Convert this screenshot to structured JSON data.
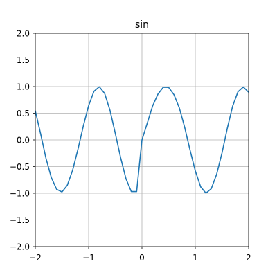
{
  "chart_data": {
    "type": "line",
    "title": "sin",
    "xlabel": "",
    "ylabel": "",
    "xlim": [
      -2,
      2
    ],
    "ylim": [
      -2,
      2
    ],
    "xticks": [
      -2,
      -1,
      0,
      1,
      2
    ],
    "xtick_labels": [
      "−2",
      "−1",
      "0",
      "1",
      "2"
    ],
    "yticks": [
      2.0,
      1.5,
      1.0,
      0.5,
      0.0,
      -0.5,
      -1.0,
      -1.5,
      -2.0
    ],
    "ytick_labels": [
      "2.0",
      "1.5",
      "1.0",
      "0.5",
      "0.0",
      "−0.5",
      "−1.0",
      "−1.5",
      "−2.0"
    ],
    "grid": true,
    "series": [
      {
        "color": "#1f77b4",
        "x": [
          -2.0,
          -1.9,
          -1.8,
          -1.7,
          -1.6,
          -1.5,
          -1.4,
          -1.3,
          -1.2,
          -1.1,
          -1.0,
          -0.9,
          -0.8,
          -0.7,
          -0.6,
          -0.5,
          -0.4,
          -0.3,
          -0.2,
          -0.1,
          0.0,
          0.1,
          0.2,
          0.3,
          0.4,
          0.5,
          0.6,
          0.7,
          0.8,
          0.9,
          1.0,
          1.1,
          1.2,
          1.3,
          1.4,
          1.5,
          1.6,
          1.7,
          1.8,
          1.9,
          2.0
        ],
        "y": [
          0.544,
          0.113,
          -0.343,
          -0.705,
          -0.926,
          -0.976,
          -0.851,
          -0.568,
          -0.174,
          0.258,
          0.643,
          0.911,
          0.996,
          0.872,
          0.556,
          0.123,
          -0.334,
          -0.728,
          -0.968,
          -0.969,
          0.0,
          0.315,
          0.637,
          0.859,
          0.988,
          0.985,
          0.848,
          0.602,
          0.239,
          -0.185,
          -0.58,
          -0.879,
          -0.999,
          -0.914,
          -0.645,
          -0.247,
          0.215,
          0.632,
          0.902,
          0.992,
          0.894
        ]
      }
    ]
  }
}
